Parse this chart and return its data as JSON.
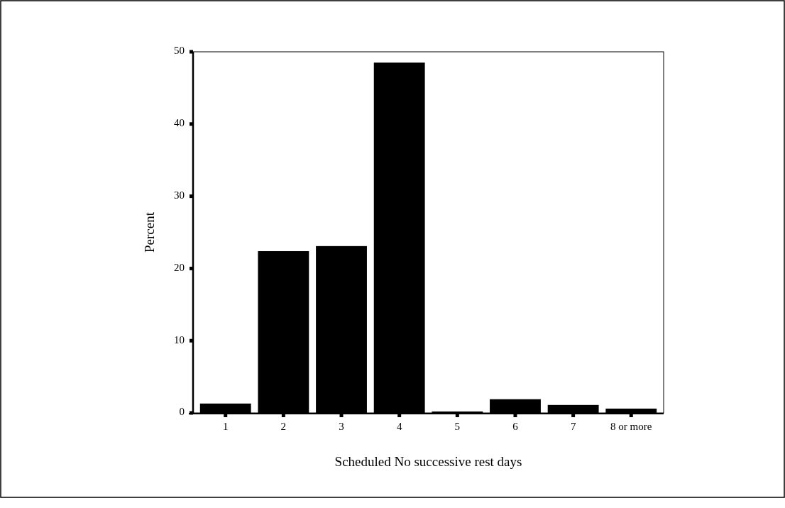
{
  "chart_data": {
    "type": "bar",
    "xlabel": "Scheduled No successive rest days",
    "ylabel": "Percent",
    "categories": [
      "1",
      "2",
      "3",
      "4",
      "5",
      "6",
      "7",
      "8 or more"
    ],
    "values": [
      1.3,
      22.4,
      23.1,
      48.5,
      0.2,
      1.9,
      1.1,
      0.6
    ],
    "color": "#000000",
    "ylim": [
      0,
      50
    ],
    "yticks": [
      0,
      10,
      20,
      30,
      40,
      50
    ],
    "grid": false
  }
}
